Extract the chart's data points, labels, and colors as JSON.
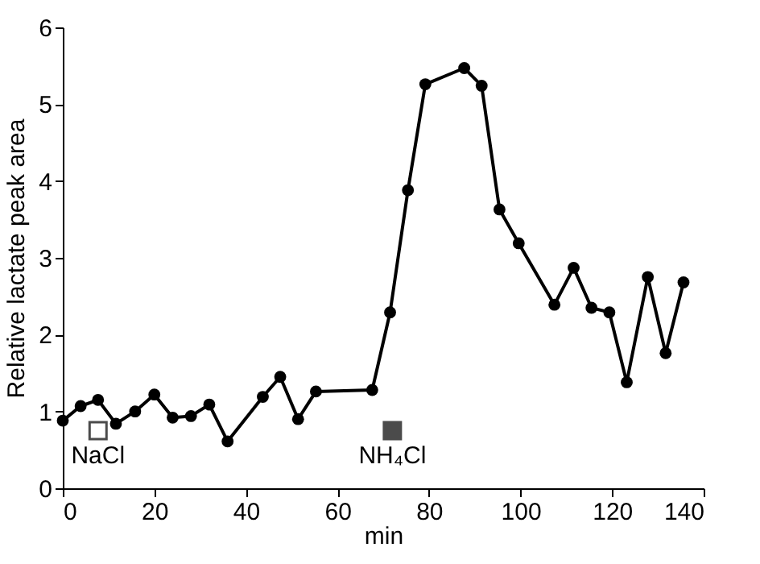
{
  "chart_data": {
    "type": "line",
    "xlabel": "min",
    "ylabel": "Relative lactate peak area",
    "x": [
      0,
      3.9,
      7.7,
      11.6,
      15.8,
      20,
      24,
      28,
      32,
      36,
      43.7,
      47.5,
      51.4,
      55.3,
      67.6,
      71.5,
      75.4,
      79.2,
      87.7,
      91.5,
      95.4,
      99.6,
      107.4,
      111.6,
      115.5,
      119.4,
      123.2,
      127.8,
      131.7,
      135.6
    ],
    "series": [
      {
        "color": "#000000",
        "values": [
          0.88,
          1.07,
          1.15,
          0.84,
          1.0,
          1.22,
          0.92,
          0.94,
          1.09,
          0.61,
          1.19,
          1.45,
          0.9,
          1.26,
          1.28,
          2.29,
          3.88,
          5.26,
          5.47,
          5.24,
          3.63,
          3.19,
          2.39,
          2.87,
          2.35,
          2.29,
          1.38,
          2.75,
          1.76,
          2.68
        ]
      }
    ],
    "annotations": [
      {
        "text": "NaCl",
        "x": 7.7,
        "y": 0.75
      },
      {
        "text": "NH₄Cl",
        "x": 72,
        "y": 0.75
      }
    ],
    "xlim": [
      0,
      140
    ],
    "xticks": [
      0,
      20,
      40,
      60,
      80,
      100,
      120,
      140
    ],
    "ylim": [
      0,
      6
    ],
    "yticks": [
      0,
      1,
      2,
      3,
      4,
      5,
      6
    ],
    "grid": false,
    "marker": "circle",
    "line_style": "solid"
  }
}
